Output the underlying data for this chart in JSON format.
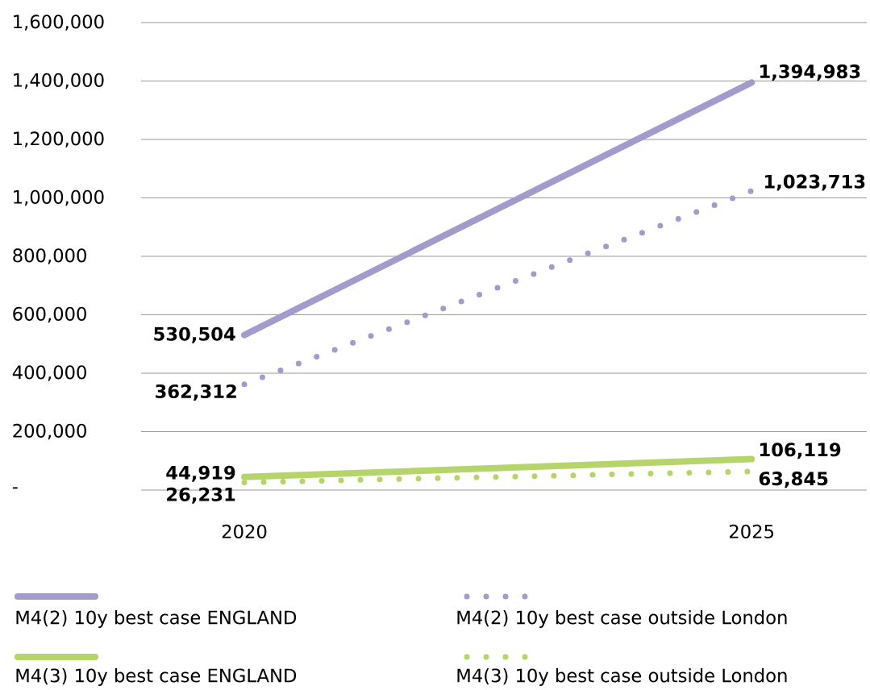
{
  "chart_data": {
    "type": "line",
    "categories": [
      "2020",
      "2025"
    ],
    "series": [
      {
        "name": "M4(2) 10y best case ENGLAND",
        "color": "#a39bcb",
        "line_style": "solid",
        "values": [
          530504,
          1394983
        ],
        "value_labels": [
          "530,504",
          "1,394,983"
        ]
      },
      {
        "name": "M4(2) 10y best case outside London",
        "color": "#a39bcb",
        "line_style": "dotted",
        "values": [
          362312,
          1023713
        ],
        "value_labels": [
          "362,312",
          "1,023,713"
        ]
      },
      {
        "name": "M4(3) 10y best case ENGLAND",
        "color": "#b5d56a",
        "line_style": "solid",
        "values": [
          44919,
          106119
        ],
        "value_labels": [
          "44,919",
          "106,119"
        ]
      },
      {
        "name": "M4(3) 10y best case outside London",
        "color": "#b5d56a",
        "line_style": "dotted",
        "values": [
          26231,
          63845
        ],
        "value_labels": [
          "26,231",
          "63,845"
        ]
      }
    ],
    "ylim": [
      0,
      1600000
    ],
    "yticks": [
      {
        "value": 0,
        "label": "-"
      },
      {
        "value": 200000,
        "label": "200,000"
      },
      {
        "value": 400000,
        "label": "400,000"
      },
      {
        "value": 600000,
        "label": "600,000"
      },
      {
        "value": 800000,
        "label": "800,000"
      },
      {
        "value": 1000000,
        "label": "1,000,000"
      },
      {
        "value": 1200000,
        "label": "1,200,000"
      },
      {
        "value": 1400000,
        "label": "1,400,000"
      },
      {
        "value": 1600000,
        "label": "1,600,000"
      }
    ],
    "grid": "y",
    "legend": "bottom",
    "marker": "none"
  }
}
